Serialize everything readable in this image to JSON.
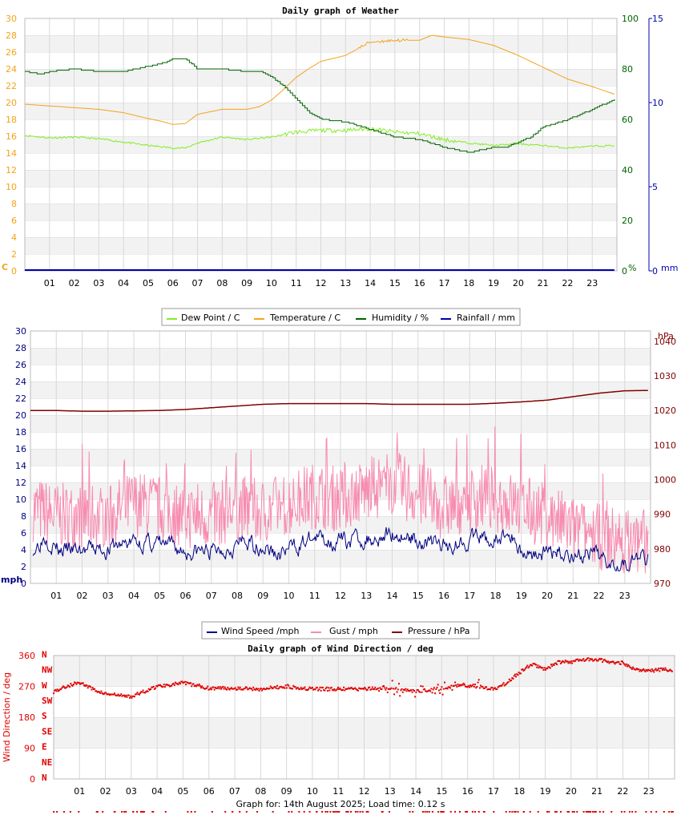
{
  "colors": {
    "dew": "#80ee20",
    "temp": "#f4a31a",
    "humidity": "#006400",
    "rain": "#0000b0",
    "wind": "#000080",
    "gust": "#f78bb0",
    "pressure": "#800000",
    "dir": "#e00000",
    "grid": "#d8d8d8",
    "band": "#f2f2f2"
  },
  "footer": "Graph for: 14th August 2025; Load time: 0.12 s",
  "chart_data": [
    {
      "type": "line",
      "title": "Daily graph of Weather",
      "x_ticks": [
        "01",
        "02",
        "03",
        "04",
        "05",
        "06",
        "07",
        "08",
        "09",
        "10",
        "11",
        "12",
        "13",
        "14",
        "15",
        "16",
        "17",
        "18",
        "19",
        "20",
        "21",
        "22",
        "23"
      ],
      "x_range": [
        0,
        24
      ],
      "y_left": {
        "unit": "C",
        "ticks": [
          "0",
          "2",
          "4",
          "6",
          "8",
          "10",
          "12",
          "14",
          "16",
          "18",
          "20",
          "22",
          "24",
          "26",
          "28",
          "30"
        ],
        "range": [
          0,
          30
        ]
      },
      "y_right1": {
        "unit": "%",
        "ticks": [
          "0",
          "20",
          "40",
          "60",
          "80",
          "100"
        ],
        "range": [
          0,
          100
        ]
      },
      "y_right2": {
        "unit": "mm",
        "ticks": [
          "0",
          "5",
          "10",
          "15"
        ],
        "range": [
          0,
          15
        ]
      },
      "legend": [
        "Dew Point / C",
        "Temperature / C",
        "Humidity / %",
        "Rainfall / mm"
      ],
      "series": [
        {
          "name": "Dew Point / C",
          "axis": "left",
          "color": "dew",
          "x": [
            0,
            1,
            2,
            3,
            4,
            5,
            6,
            6.5,
            7,
            8,
            9,
            10,
            11,
            12,
            13,
            14,
            15,
            16,
            17,
            18,
            19,
            20,
            21,
            22,
            23,
            23.9
          ],
          "y": [
            16.1,
            15.8,
            15.9,
            15.7,
            15.3,
            14.9,
            14.6,
            14.6,
            15.2,
            15.9,
            15.6,
            15.9,
            16.5,
            16.7,
            16.7,
            16.9,
            16.5,
            16.3,
            15.6,
            15.2,
            14.9,
            15.1,
            14.9,
            14.6,
            14.8,
            14.9
          ]
        },
        {
          "name": "Temperature / C",
          "axis": "left",
          "color": "temp",
          "x": [
            0,
            1,
            2,
            3,
            4,
            5,
            5.5,
            6,
            6.5,
            7,
            8,
            9,
            9.5,
            10,
            10.5,
            11,
            11.5,
            12,
            13,
            14,
            15,
            16,
            16.5,
            17,
            18,
            19,
            20,
            21,
            22,
            23,
            23.9
          ],
          "y": [
            19.8,
            19.6,
            19.4,
            19.2,
            18.8,
            18.1,
            17.8,
            17.4,
            17.5,
            18.6,
            19.2,
            19.2,
            19.5,
            20.3,
            21.6,
            23.0,
            24.0,
            24.9,
            25.6,
            27.2,
            27.4,
            27.4,
            28.0,
            27.8,
            27.5,
            26.8,
            25.6,
            24.2,
            22.8,
            21.9,
            21.0
          ]
        },
        {
          "name": "Humidity / %",
          "axis": "right1",
          "color": "humidity",
          "x": [
            0,
            0.6,
            1,
            2,
            3,
            4,
            5,
            5.5,
            6,
            6.5,
            7,
            8,
            9,
            9.5,
            10,
            10.5,
            11,
            11.5,
            12,
            13,
            14,
            15,
            16,
            17,
            18,
            18.5,
            19,
            19.5,
            20,
            20.5,
            21,
            22,
            23,
            23.9
          ],
          "y": [
            79,
            78,
            79,
            80,
            79,
            79,
            81,
            82,
            84,
            84,
            80,
            80,
            79,
            79,
            77,
            73,
            68,
            63,
            60,
            59,
            56,
            53,
            52,
            49,
            47,
            48,
            49,
            49,
            51,
            53,
            57,
            60,
            64,
            68
          ]
        },
        {
          "name": "Rainfall / mm",
          "axis": "right2",
          "color": "rain",
          "x": [
            0,
            23.9
          ],
          "y": [
            0,
            0
          ]
        }
      ]
    },
    {
      "type": "line",
      "title": "",
      "x_ticks": [
        "01",
        "02",
        "03",
        "04",
        "05",
        "06",
        "07",
        "08",
        "09",
        "10",
        "11",
        "12",
        "13",
        "14",
        "15",
        "16",
        "17",
        "18",
        "19",
        "20",
        "21",
        "22",
        "23"
      ],
      "x_range": [
        0,
        24
      ],
      "y_left": {
        "unit": "mph",
        "ticks": [
          "0",
          "2",
          "4",
          "6",
          "8",
          "10",
          "12",
          "14",
          "16",
          "18",
          "20",
          "22",
          "24",
          "26",
          "28",
          "30"
        ],
        "range": [
          0,
          30
        ]
      },
      "y_right": {
        "unit": "hPa",
        "ticks": [
          "970",
          "980",
          "990",
          "1000",
          "1010",
          "1020",
          "1030",
          "1040"
        ],
        "range": [
          970,
          1043
        ]
      },
      "legend": [
        "Wind Speed /mph",
        "Gust / mph",
        "Pressure / hPa"
      ],
      "series": [
        {
          "name": "Wind Speed /mph",
          "axis": "left",
          "color": "wind",
          "base": 4.2,
          "amp": 1.6,
          "knots_x": [
            0,
            0.5,
            1,
            2,
            3,
            4,
            5,
            6,
            7,
            8,
            9,
            9.5,
            10,
            11,
            12,
            13,
            14,
            15,
            16,
            17,
            18,
            18.5,
            19,
            20,
            21,
            22,
            23,
            23.9
          ],
          "knots_y": [
            3.8,
            6.0,
            4.0,
            3.8,
            4.2,
            5.0,
            4.6,
            3.8,
            3.8,
            4.8,
            4.5,
            3.2,
            4.2,
            5.4,
            5.0,
            5.3,
            6.0,
            5.2,
            4.4,
            5.5,
            5.0,
            6.0,
            3.6,
            3.7,
            3.5,
            3.0,
            2.6,
            3.2
          ]
        },
        {
          "name": "Gust / mph",
          "axis": "left",
          "color": "gust",
          "base": 8.5,
          "amp": 4.0,
          "knots_x": [
            0,
            1,
            2,
            3,
            4,
            5,
            6,
            7,
            8,
            9,
            10,
            11,
            12,
            13,
            14,
            15,
            16,
            17,
            18,
            19,
            20,
            21,
            22,
            23,
            23.9
          ],
          "knots_y": [
            9,
            8,
            8,
            8,
            9.5,
            9,
            8,
            8,
            9,
            8.5,
            9.5,
            10.5,
            10,
            11,
            12,
            10.5,
            9,
            10,
            10,
            9,
            8,
            6.5,
            5.5,
            5,
            5
          ]
        },
        {
          "name": "Pressure / hPa",
          "axis": "right",
          "color": "pressure",
          "x": [
            0,
            1,
            2,
            3,
            4,
            5,
            6,
            7,
            8,
            9,
            10,
            11,
            12,
            13,
            14,
            15,
            16,
            17,
            18,
            19,
            20,
            21,
            22,
            23,
            23.9
          ],
          "y": [
            1020.0,
            1020.0,
            1019.8,
            1019.8,
            1019.9,
            1020.0,
            1020.3,
            1020.8,
            1021.3,
            1021.8,
            1022.0,
            1022.0,
            1022.0,
            1022.0,
            1021.8,
            1021.8,
            1021.8,
            1021.8,
            1022.1,
            1022.5,
            1023.0,
            1024.0,
            1025.0,
            1025.7,
            1025.8
          ]
        }
      ]
    },
    {
      "type": "scatter",
      "title": "Daily graph of Wind Direction / deg",
      "ylabel": "Wind Direction / deg",
      "x_ticks": [
        "01",
        "02",
        "03",
        "04",
        "05",
        "06",
        "07",
        "08",
        "09",
        "10",
        "11",
        "12",
        "13",
        "14",
        "15",
        "16",
        "17",
        "18",
        "19",
        "20",
        "21",
        "22",
        "23"
      ],
      "x_range": [
        0,
        24
      ],
      "y_ticks": [
        "0",
        "90",
        "180",
        "270",
        "360"
      ],
      "compass": [
        "N",
        "NE",
        "E",
        "SE",
        "S",
        "SW",
        "W",
        "NW",
        "N"
      ],
      "range": [
        0,
        360
      ],
      "series": [
        {
          "name": "",
          "color": "dir",
          "knots_x": [
            0,
            0.5,
            1,
            1.5,
            2,
            3,
            4,
            5,
            6,
            7,
            8,
            9,
            10,
            11,
            12,
            13,
            14,
            15,
            15.5,
            16,
            16.5,
            17,
            17.5,
            18,
            18.5,
            19,
            19.5,
            20,
            20.5,
            21,
            21.5,
            22,
            22.5,
            23,
            23.5,
            23.9
          ],
          "knots_y": [
            255,
            270,
            282,
            262,
            248,
            240,
            270,
            280,
            265,
            265,
            262,
            270,
            262,
            262,
            262,
            265,
            255,
            265,
            270,
            272,
            270,
            262,
            280,
            310,
            335,
            320,
            340,
            342,
            348,
            348,
            342,
            338,
            320,
            315,
            320,
            318
          ]
        }
      ]
    }
  ]
}
